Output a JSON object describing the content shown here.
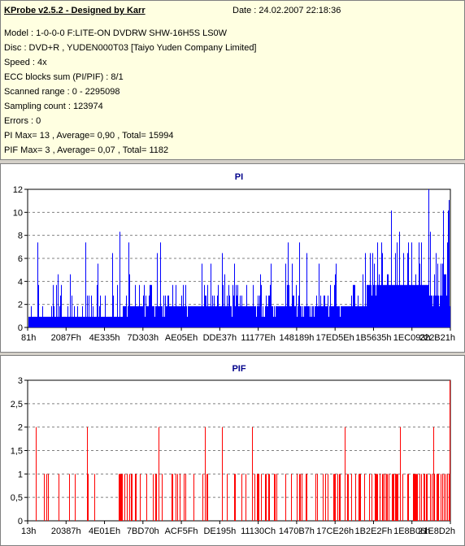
{
  "info": {
    "title": "KProbe v2.5.2 - Designed by Karr",
    "date": "Date : 24.02.2007 22:18:36",
    "lines": [
      "Model : 1-0-0-0 F:LITE-ON DVDRW SHW-16H5S  LS0W",
      "Disc : DVD+R , YUDEN000T03 [Taiyo Yuden Company Limited]",
      "Speed : 4x",
      "ECC blocks sum (PI/PIF) : 8/1",
      "Scanned range : 0 - 2295098",
      "Sampling count : 123974",
      "Errors : 0",
      "PI Max= 13 , Average= 0,90 , Total= 15994",
      "PIF Max= 3 , Average= 0,07 , Total= 1182"
    ]
  },
  "chart_data": [
    {
      "type": "bar",
      "title": "PI",
      "ylim": [
        0,
        13
      ],
      "yticks": [
        "0",
        "2",
        "4",
        "6",
        "8",
        "10",
        "12"
      ],
      "xticks": [
        "81h",
        "2087Fh",
        "4E335h",
        "7D303h",
        "AE05Eh",
        "DDE37h",
        "11177Eh",
        "148189h",
        "17ED5Eh",
        "1B5635h",
        "1EC093h",
        "222B21h"
      ],
      "grid": true,
      "color": "#0000ff",
      "profile": [
        {
          "from": 0.0,
          "to": 0.22,
          "base": 1,
          "peak": 4,
          "max": 9
        },
        {
          "from": 0.22,
          "to": 0.72,
          "base": 2,
          "peak": 4,
          "max": 8
        },
        {
          "from": 0.72,
          "to": 0.8,
          "base": 2,
          "peak": 5,
          "max": 8
        },
        {
          "from": 0.8,
          "to": 0.95,
          "base": 4,
          "peak": 8,
          "max": 13
        },
        {
          "from": 0.95,
          "to": 1.0,
          "base": 3,
          "peak": 7,
          "max": 12
        }
      ]
    },
    {
      "type": "bar",
      "title": "PIF",
      "ylim": [
        0,
        3
      ],
      "yticks": [
        "0",
        "0,5",
        "1",
        "1,5",
        "2",
        "2,5",
        "3"
      ],
      "xticks": [
        "13h",
        "20387h",
        "4E01Eh",
        "7BD70h",
        "ACF5Fh",
        "DE195h",
        "11130Ch",
        "1470B7h",
        "17CE26h",
        "1B2E2Fh",
        "1E8B06h",
        "21E8D2h"
      ],
      "grid": true,
      "color": "#ff0000",
      "spikes_2": [
        0.02,
        0.14,
        0.31,
        0.42,
        0.46,
        0.53,
        0.75,
        0.88,
        0.96
      ],
      "spike_3": [
        1.0
      ]
    }
  ]
}
